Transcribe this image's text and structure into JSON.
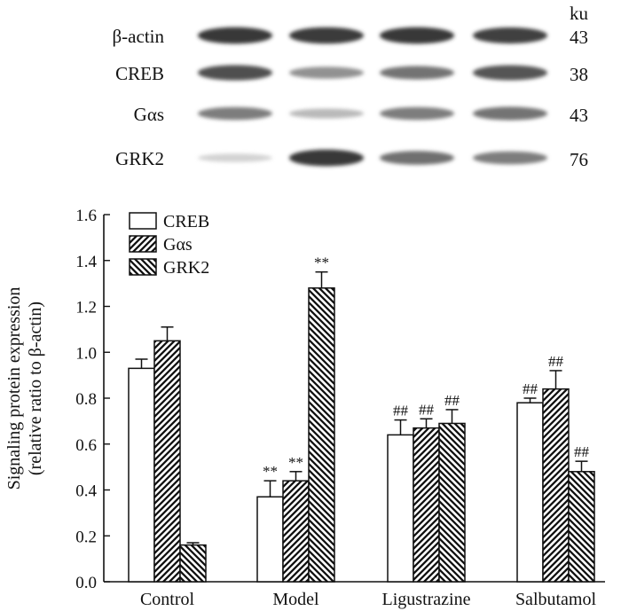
{
  "blot": {
    "unit_label": "ku",
    "rows": [
      {
        "label": "β-actin",
        "ku": "43",
        "intensity": [
          0.9,
          0.88,
          0.9,
          0.85
        ]
      },
      {
        "label": "CREB",
        "ku": "38",
        "intensity": [
          0.78,
          0.45,
          0.6,
          0.75
        ]
      },
      {
        "label": "Gαs",
        "ku": "43",
        "intensity": [
          0.55,
          0.25,
          0.55,
          0.6
        ]
      },
      {
        "label": "GRK2",
        "ku": "76",
        "intensity": [
          0.12,
          0.9,
          0.62,
          0.55
        ]
      }
    ]
  },
  "chart_data": {
    "type": "bar",
    "categories": [
      "Control",
      "Model",
      "Ligustrazine",
      "Salbutamol"
    ],
    "ylabel_line1": "Signaling protein expression",
    "ylabel_line2": "(relative ratio to β-actin)",
    "ylim": [
      0,
      1.6
    ],
    "yticks": [
      "0.0",
      "0.2",
      "0.4",
      "0.6",
      "0.8",
      "1.0",
      "1.2",
      "1.4",
      "1.6"
    ],
    "legend_position": "top-left",
    "series": [
      {
        "name": "CREB",
        "pattern": "open",
        "values": [
          0.93,
          0.37,
          0.64,
          0.78
        ],
        "errors": [
          0.04,
          0.07,
          0.065,
          0.02
        ],
        "marks": [
          "",
          "**",
          "##",
          "##"
        ]
      },
      {
        "name": "Gαs",
        "pattern": "hatch-forward",
        "values": [
          1.05,
          0.44,
          0.67,
          0.84
        ],
        "errors": [
          0.06,
          0.04,
          0.04,
          0.08
        ],
        "marks": [
          "",
          "**",
          "##",
          "##"
        ]
      },
      {
        "name": "GRK2",
        "pattern": "hatch-back",
        "values": [
          0.16,
          1.28,
          0.69,
          0.48
        ],
        "errors": [
          0.01,
          0.07,
          0.06,
          0.045
        ],
        "marks": [
          "",
          "**",
          "##",
          "##"
        ]
      }
    ]
  }
}
